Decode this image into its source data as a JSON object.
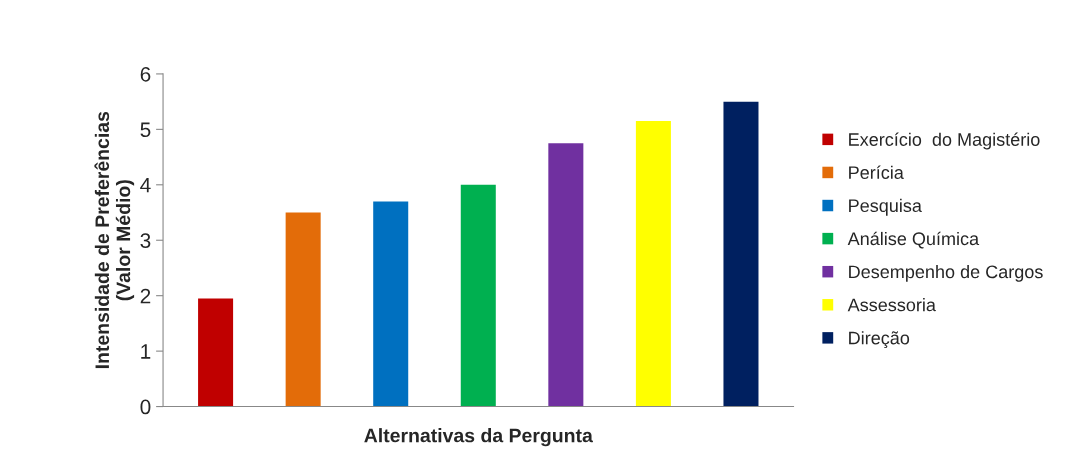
{
  "chart_data": {
    "type": "bar",
    "xlabel": "Alternativas da Pergunta",
    "ylabel": "Intensidade de Preferências\n(Valor Médio)",
    "categories": [
      null,
      null,
      null,
      null,
      null,
      null,
      null
    ],
    "series": [
      {
        "name": "Exercício  do Magistério",
        "color": "#c00000",
        "values": [
          1.95,
          null,
          null,
          null,
          null,
          null,
          null
        ]
      },
      {
        "name": "Perícia",
        "color": "#e36c09",
        "values": [
          null,
          3.5,
          null,
          null,
          null,
          null,
          null
        ]
      },
      {
        "name": "Pesquisa",
        "color": "#0070c0",
        "values": [
          null,
          null,
          3.7,
          null,
          null,
          null,
          null
        ]
      },
      {
        "name": "Análise Química",
        "color": "#00b050",
        "values": [
          null,
          null,
          null,
          4.0,
          null,
          null,
          null
        ]
      },
      {
        "name": "Desempenho de Cargos",
        "color": "#7030a0",
        "values": [
          null,
          null,
          null,
          null,
          4.75,
          null,
          null
        ]
      },
      {
        "name": "Assessoria",
        "color": "#ffff00",
        "values": [
          null,
          null,
          null,
          null,
          null,
          5.15,
          null
        ]
      },
      {
        "name": "Direção",
        "color": "#002060",
        "values": [
          null,
          null,
          null,
          null,
          null,
          null,
          5.5
        ]
      }
    ],
    "ylim": [
      0,
      6
    ],
    "yticks": [
      0,
      1,
      2,
      3,
      4,
      5,
      6
    ],
    "legend": "right",
    "grid": false
  }
}
